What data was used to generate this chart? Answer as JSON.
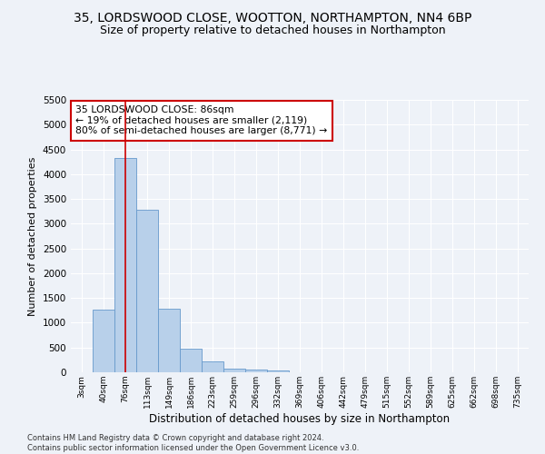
{
  "title1": "35, LORDSWOOD CLOSE, WOOTTON, NORTHAMPTON, NN4 6BP",
  "title2": "Size of property relative to detached houses in Northampton",
  "xlabel": "Distribution of detached houses by size in Northampton",
  "ylabel": "Number of detached properties",
  "bar_values": [
    0,
    1270,
    4330,
    3290,
    1280,
    480,
    215,
    80,
    55,
    35,
    0,
    0,
    0,
    0,
    0,
    0,
    0,
    0,
    0,
    0,
    0
  ],
  "bar_labels": [
    "3sqm",
    "40sqm",
    "76sqm",
    "113sqm",
    "149sqm",
    "186sqm",
    "223sqm",
    "259sqm",
    "296sqm",
    "332sqm",
    "369sqm",
    "406sqm",
    "442sqm",
    "479sqm",
    "515sqm",
    "552sqm",
    "589sqm",
    "625sqm",
    "662sqm",
    "698sqm",
    "735sqm"
  ],
  "bar_color": "#b8d0ea",
  "bar_edge_color": "#6699cc",
  "vline_x": 2,
  "vline_color": "#cc0000",
  "annotation_text": "35 LORDSWOOD CLOSE: 86sqm\n← 19% of detached houses are smaller (2,119)\n80% of semi-detached houses are larger (8,771) →",
  "annotation_box_color": "#ffffff",
  "annotation_box_edge": "#cc0000",
  "ylim": [
    0,
    5500
  ],
  "yticks": [
    0,
    500,
    1000,
    1500,
    2000,
    2500,
    3000,
    3500,
    4000,
    4500,
    5000,
    5500
  ],
  "footer": "Contains HM Land Registry data © Crown copyright and database right 2024.\nContains public sector information licensed under the Open Government Licence v3.0.",
  "bg_color": "#eef2f8",
  "grid_color": "#ffffff",
  "title1_fontsize": 10,
  "title2_fontsize": 9
}
